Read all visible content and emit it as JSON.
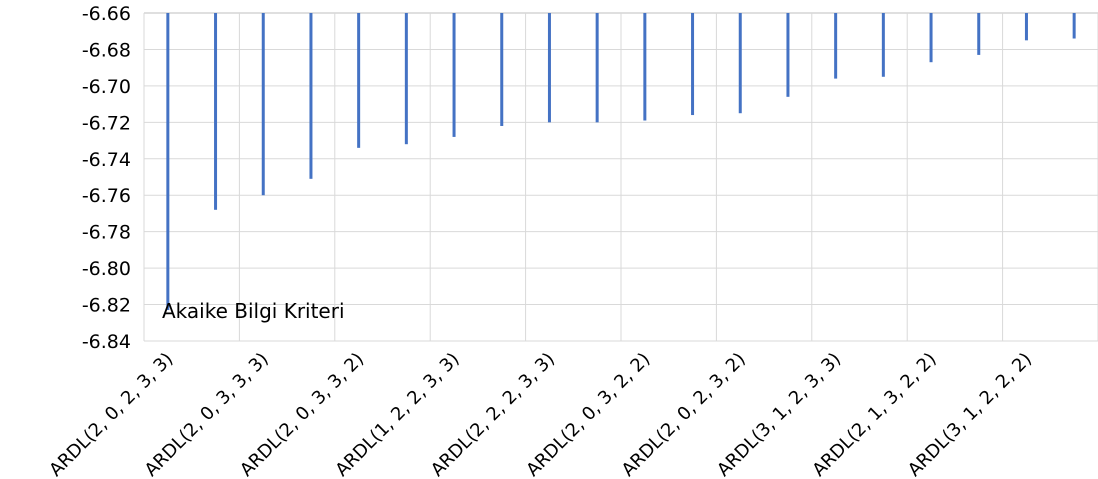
{
  "chart_data": {
    "type": "bar",
    "title": "Akaike Bilgi Kriteri",
    "xlabel": "",
    "ylabel": "",
    "ylim": [
      -6.84,
      -6.66
    ],
    "y_ticks": [
      "-6.66",
      "-6.68",
      "-6.70",
      "-6.72",
      "-6.74",
      "-6.76",
      "-6.78",
      "-6.80",
      "-6.82",
      "-6.84"
    ],
    "values": [
      -6.823,
      -6.768,
      -6.76,
      -6.751,
      -6.734,
      -6.732,
      -6.728,
      -6.722,
      -6.72,
      -6.72,
      -6.719,
      -6.716,
      -6.715,
      -6.706,
      -6.696,
      -6.695,
      -6.687,
      -6.683,
      -6.675,
      -6.674
    ],
    "x_tick_labels": [
      {
        "index": 0,
        "text": "ARDL(2, 0, 2, 3, 3)"
      },
      {
        "index": 2,
        "text": "ARDL(2, 0, 3, 3, 3)"
      },
      {
        "index": 4,
        "text": "ARDL(2, 0, 3, 3, 2)"
      },
      {
        "index": 6,
        "text": "ARDL(1, 2, 2, 3, 3)"
      },
      {
        "index": 8,
        "text": "ARDL(2, 2, 2, 3, 3)"
      },
      {
        "index": 10,
        "text": "ARDL(2, 0, 3, 2, 2)"
      },
      {
        "index": 12,
        "text": "ARDL(2, 0, 2, 3, 2)"
      },
      {
        "index": 14,
        "text": "ARDL(3, 1, 2, 3, 3)"
      },
      {
        "index": 16,
        "text": "ARDL(2, 1, 3, 2, 2)"
      },
      {
        "index": 18,
        "text": "ARDL(3, 1, 2, 2, 2)"
      }
    ],
    "bar_color": "#4472c4",
    "grid": true
  }
}
